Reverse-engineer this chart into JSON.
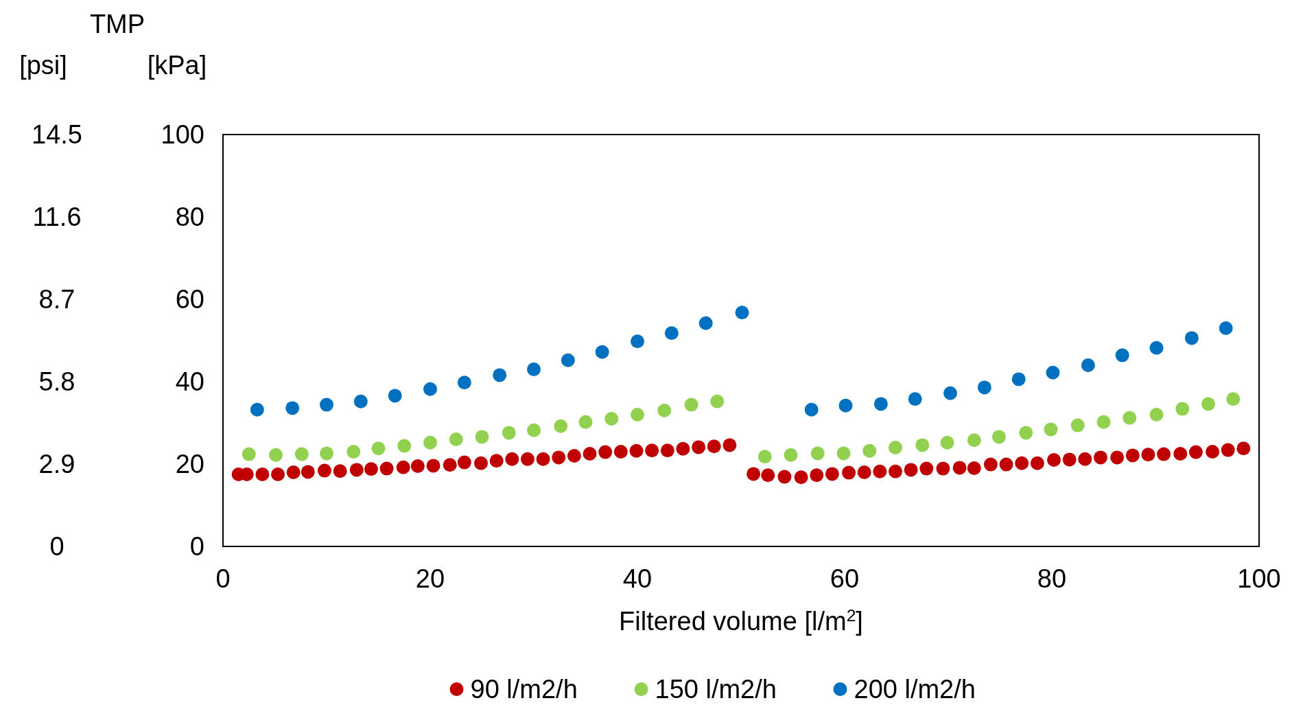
{
  "chart_data": {
    "type": "scatter",
    "title": "TMP",
    "xlabel": "Filtered volume [l/m$^{2}$]",
    "ylabel": "[kPa]",
    "y2label": "[psi]",
    "xlim": [
      0,
      100
    ],
    "xticks": [
      0,
      20,
      40,
      60,
      80,
      100
    ],
    "ylim": [
      0,
      100
    ],
    "yticks": [
      0,
      20,
      40,
      60,
      80,
      100
    ],
    "y2lim": [
      0,
      14.5
    ],
    "y2ticks": [
      0,
      2.9,
      5.8,
      8.7,
      11.6,
      14.5
    ],
    "grid": false,
    "legend": "bottom",
    "marker": "circle",
    "series": [
      {
        "name": "90 l/m2/h",
        "color": "#c00000",
        "x": [
          1.5,
          2.3,
          3.8,
          5.3,
          6.8,
          8.2,
          9.8,
          11.3,
          12.9,
          14.3,
          15.8,
          17.4,
          18.8,
          20.3,
          21.9,
          23.3,
          24.9,
          26.4,
          27.9,
          29.4,
          30.9,
          32.4,
          33.9,
          35.4,
          36.9,
          38.4,
          39.9,
          41.4,
          42.9,
          44.4,
          45.9,
          47.4,
          48.9,
          51.2,
          52.6,
          54.2,
          55.8,
          57.3,
          58.8,
          60.4,
          61.9,
          63.4,
          64.9,
          66.4,
          67.9,
          69.5,
          71.1,
          72.5,
          74.1,
          75.6,
          77.1,
          78.6,
          80.2,
          81.7,
          83.2,
          84.7,
          86.3,
          87.8,
          89.3,
          90.8,
          92.4,
          93.9,
          95.5,
          97.0,
          98.5
        ],
        "values": [
          17.5,
          17.5,
          17.5,
          17.5,
          18.0,
          18.1,
          18.4,
          18.3,
          18.6,
          18.8,
          18.9,
          19.2,
          19.5,
          19.6,
          19.8,
          20.4,
          20.2,
          20.8,
          21.2,
          21.2,
          21.2,
          21.6,
          22.0,
          22.5,
          22.9,
          23.0,
          23.2,
          23.3,
          23.3,
          23.7,
          24.1,
          24.3,
          24.6,
          17.6,
          17.3,
          16.9,
          16.8,
          17.3,
          17.6,
          17.9,
          18.0,
          18.2,
          18.2,
          18.6,
          18.9,
          18.9,
          19.1,
          19.0,
          19.9,
          19.9,
          20.2,
          20.2,
          21.0,
          21.1,
          21.2,
          21.6,
          21.6,
          22.1,
          22.3,
          22.4,
          22.5,
          22.9,
          23.0,
          23.4,
          23.8
        ]
      },
      {
        "name": "150 l/m2/h",
        "color": "#92d050",
        "x": [
          2.5,
          5.1,
          7.6,
          10,
          12.6,
          15,
          17.5,
          20,
          22.5,
          25,
          27.6,
          30,
          32.6,
          35,
          37.5,
          40,
          42.6,
          45.2,
          47.7,
          52.3,
          54.8,
          57.4,
          59.9,
          62.4,
          64.9,
          67.5,
          69.9,
          72.5,
          74.9,
          77.5,
          79.9,
          82.5,
          85,
          87.5,
          90.1,
          92.6,
          95.1,
          97.5
        ],
        "values": [
          22.4,
          22.2,
          22.4,
          22.6,
          23,
          23.8,
          24.4,
          25.2,
          26,
          26.6,
          27.6,
          28.2,
          29.2,
          30.2,
          31,
          32,
          33,
          34.4,
          35.2,
          21.8,
          22.2,
          22.6,
          22.6,
          23.2,
          24,
          24.6,
          25.2,
          25.8,
          26.6,
          27.6,
          28.4,
          29.4,
          30.2,
          31.2,
          32,
          33.4,
          34.6,
          35.8
        ]
      },
      {
        "name": "200 l/m2/h",
        "color": "#0070c0",
        "x": [
          3.3,
          6.7,
          10,
          13.3,
          16.6,
          20,
          23.3,
          26.7,
          30,
          33.3,
          36.6,
          40,
          43.3,
          46.6,
          50.1,
          56.8,
          60.1,
          63.5,
          66.8,
          70.2,
          73.5,
          76.8,
          80.1,
          83.5,
          86.8,
          90.1,
          93.5,
          96.8
        ],
        "values": [
          33.2,
          33.6,
          34.4,
          35.2,
          36.6,
          38.2,
          39.8,
          41.6,
          43,
          45.2,
          47.2,
          49.8,
          51.8,
          54.2,
          56.8,
          33.2,
          34.2,
          34.6,
          35.8,
          37.2,
          38.6,
          40.6,
          42.2,
          44,
          46.4,
          48.2,
          50.6,
          53
        ]
      }
    ]
  }
}
